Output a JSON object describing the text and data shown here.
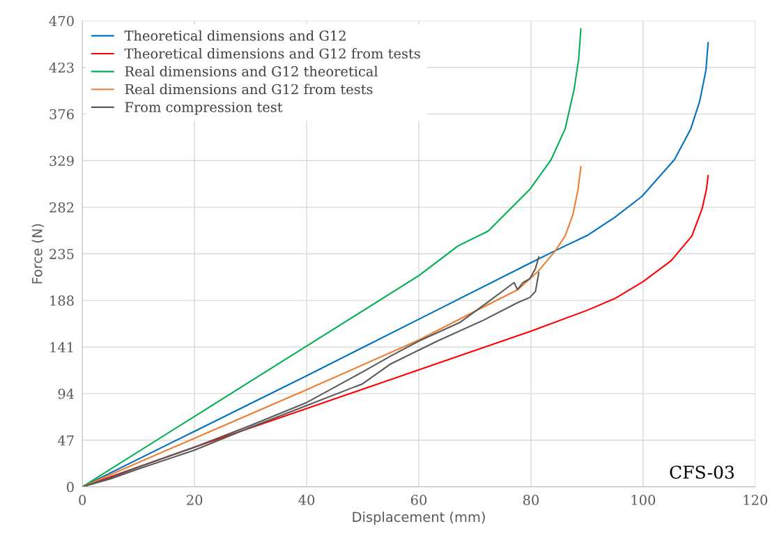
{
  "chart_data": {
    "type": "line",
    "xlabel": "Displacement (mm)",
    "ylabel": "Force (N)",
    "xlim": [
      0,
      120
    ],
    "xticks": [
      0,
      20,
      40,
      60,
      80,
      100,
      120
    ],
    "ylim": [
      0,
      470
    ],
    "yticks": [
      0,
      47,
      94,
      141,
      188,
      235,
      282,
      329,
      376,
      423,
      470
    ],
    "grid": true,
    "legend": "top left",
    "marker": "none",
    "line_style": "solid",
    "annotations": [
      "CFS-03"
    ],
    "series": [
      {
        "name": "Theoretical dimensions and G12",
        "color": "#0070c0",
        "x": [
          0,
          20,
          40,
          60,
          80,
          85,
          90.2,
          95,
          99.8,
          105.6,
          108.5,
          110.1,
          111.2,
          111.6
        ],
        "values": [
          0,
          56,
          112,
          169,
          226,
          240,
          254,
          272,
          293,
          330,
          361,
          389,
          420,
          448
        ]
      },
      {
        "name": "Theoretical dimensions and G12 from tests",
        "color": "#ff0000",
        "x": [
          0,
          20,
          40,
          60,
          80,
          90,
          95,
          100,
          105,
          108.7,
          110.5,
          111.3,
          111.6
        ],
        "values": [
          0,
          40,
          79,
          118,
          157,
          178,
          190,
          207,
          228,
          253,
          280,
          300,
          314
        ]
      },
      {
        "name": "Real dimensions and G12 theoretical",
        "color": "#00b050",
        "x": [
          0,
          20,
          40,
          60,
          67,
          72.4,
          79.8,
          83.6,
          86.1,
          87.7,
          88.5,
          88.9
        ],
        "values": [
          0,
          71,
          142,
          213,
          243,
          258,
          300,
          330,
          361,
          401,
          431,
          462
        ]
      },
      {
        "name": "Real dimensions and G12 from tests",
        "color": "#ed7d31",
        "x": [
          0,
          20,
          40,
          60,
          70,
          77.7,
          81.4,
          84.2,
          86.1,
          87.5,
          88.4,
          88.9
        ],
        "values": [
          0,
          49,
          98,
          148,
          177,
          199,
          218,
          237,
          253,
          275,
          300,
          323
        ]
      },
      {
        "name": "From compression test",
        "color": "#595959",
        "x": [
          0,
          5,
          10,
          20,
          30,
          40,
          50,
          55,
          60,
          67.4,
          72,
          77,
          77.6,
          78.6,
          79.8,
          80.8,
          81.4
        ],
        "values": [
          0,
          9,
          20,
          40,
          62,
          85,
          116,
          132,
          147,
          166,
          185,
          206,
          199,
          206,
          210,
          220,
          232
        ]
      },
      {
        "color": "#595959",
        "x": [
          0,
          5,
          10,
          20,
          30,
          40,
          50,
          55,
          63.3,
          71.5,
          77.7,
          79.8,
          80.8,
          81.4
        ],
        "values": [
          0,
          8,
          18,
          37,
          60,
          82,
          104,
          124,
          147,
          168,
          186,
          191,
          197,
          216
        ]
      }
    ]
  }
}
